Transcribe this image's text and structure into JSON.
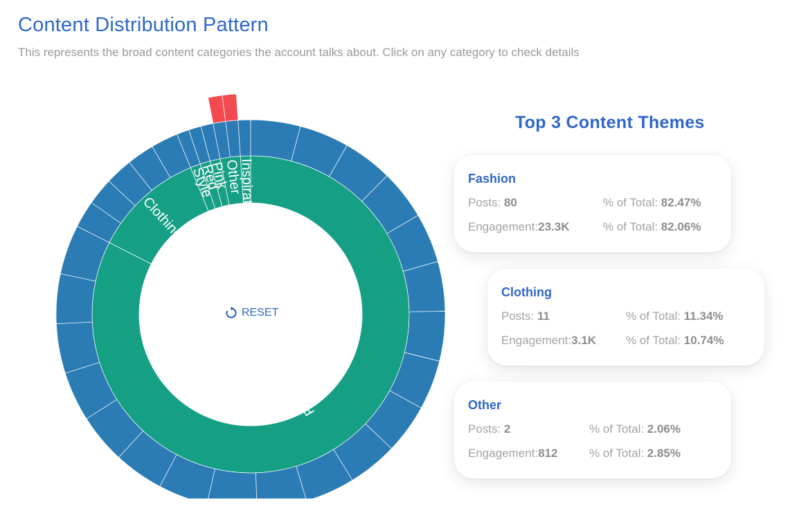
{
  "header": {
    "title": "Content Distribution Pattern",
    "subtitle": "This represents the broad content categories the account talks about. Click on any category to check details"
  },
  "reset_label": "RESET",
  "themes": {
    "title": "Top 3 Content Themes",
    "posts_label": "Posts: ",
    "engagement_label": "Engagement:",
    "pct_label": "% of Total: ",
    "cards": [
      {
        "name": "Fashion",
        "posts": "80",
        "posts_pct": "82.47%",
        "engagement": "23.3K",
        "engagement_pct": "82.06%"
      },
      {
        "name": "Clothing",
        "posts": "11",
        "posts_pct": "11.34%",
        "engagement": "3.1K",
        "engagement_pct": "10.74%"
      },
      {
        "name": "Other",
        "posts": "2",
        "posts_pct": "2.06%",
        "engagement": "812",
        "engagement_pct": "2.85%"
      }
    ]
  },
  "chart_data": {
    "type": "sunburst",
    "title": "Content Distribution Pattern",
    "colors": {
      "inner": "#159f84",
      "outer": "#2b7cb5",
      "highlight": "#f34a52",
      "separator": "#ffffff"
    },
    "inner_ring": [
      {
        "name": "Fashion",
        "percent": 82.47
      },
      {
        "name": "Clothing",
        "percent": 11.34
      },
      {
        "name": "Style",
        "percent": 1.03
      },
      {
        "name": "Red",
        "percent": 1.03
      },
      {
        "name": "Pink",
        "percent": 1.03
      },
      {
        "name": "Other",
        "percent": 2.06
      },
      {
        "name": "Inspiration",
        "percent": 1.03
      }
    ],
    "outer_segments": {
      "Fashion": 20,
      "Clothing": 5,
      "Style": 1,
      "Red": 1,
      "Pink": 1,
      "Other": 2,
      "Inspiration": 1
    },
    "highlighted_outer": {
      "parent": "Other",
      "label": "Other"
    }
  }
}
